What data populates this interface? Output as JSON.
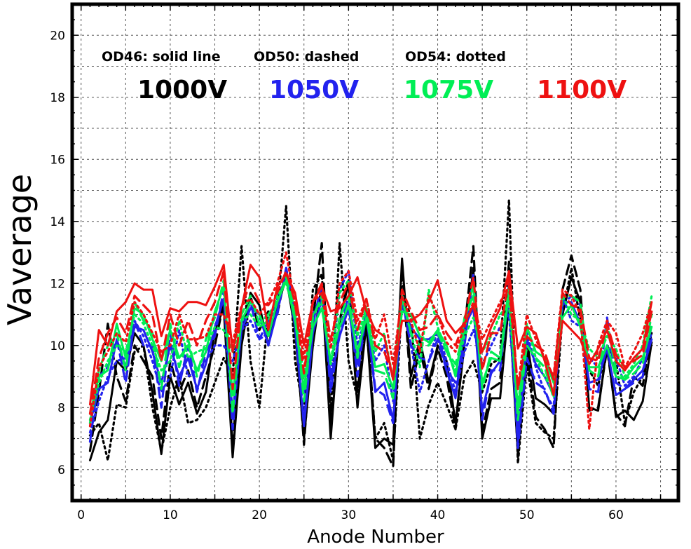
{
  "chart_data": {
    "type": "line",
    "xlabel": "Anode Number",
    "ylabel": "Vaverage",
    "xlim": [
      -1,
      67
    ],
    "ylim": [
      5,
      21
    ],
    "xticks": [
      0,
      10,
      20,
      30,
      40,
      50,
      60
    ],
    "yticks": [
      6,
      8,
      10,
      12,
      14,
      16,
      18,
      20
    ],
    "grid": true,
    "annotations": [
      {
        "text": "OD46: solid line"
      },
      {
        "text": "OD50: dashed"
      },
      {
        "text": "OD54: dotted"
      }
    ],
    "voltage_labels": [
      {
        "text": "1000V",
        "color": "#000000"
      },
      {
        "text": "1050V",
        "color": "#2222ee"
      },
      {
        "text": "1075V",
        "color": "#00ee55"
      },
      {
        "text": "1100V",
        "color": "#ee1111"
      }
    ],
    "x": [
      1,
      2,
      3,
      4,
      5,
      6,
      7,
      8,
      9,
      10,
      11,
      12,
      13,
      14,
      15,
      16,
      17,
      18,
      19,
      20,
      21,
      22,
      23,
      24,
      25,
      26,
      27,
      28,
      29,
      30,
      31,
      32,
      33,
      34,
      35,
      36,
      37,
      38,
      39,
      40,
      41,
      42,
      43,
      44,
      45,
      46,
      47,
      48,
      49,
      50,
      51,
      52,
      53,
      54,
      55,
      56,
      57,
      58,
      59,
      60,
      61,
      62,
      63,
      64
    ],
    "series": [
      {
        "voltage": "1000V",
        "style": "solid",
        "color": "#000000",
        "values": [
          6.3,
          7.2,
          7.6,
          9.5,
          9.2,
          10.4,
          10.0,
          8.5,
          6.5,
          9.0,
          8.1,
          8.8,
          7.8,
          8.5,
          10.5,
          11.2,
          6.4,
          10.0,
          11.7,
          11.3,
          10.0,
          11.2,
          12.2,
          10.5,
          7.0,
          10.0,
          12.0,
          7.0,
          10.8,
          12.0,
          8.0,
          10.7,
          6.7,
          7.0,
          6.8,
          12.8,
          9.0,
          10.2,
          8.8,
          10.0,
          9.5,
          7.5,
          10.0,
          12.5,
          7.0,
          8.3,
          8.3,
          11.4,
          6.5,
          10.2,
          8.3,
          8.1,
          7.8,
          11.0,
          12.2,
          11.4,
          8.0,
          7.9,
          10.0,
          7.7,
          7.9,
          7.6,
          8.2,
          10.1
        ]
      },
      {
        "voltage": "1000V",
        "style": "dashed",
        "color": "#000000",
        "values": [
          6.6,
          8.5,
          10.7,
          9.0,
          8.2,
          10.0,
          9.5,
          9.0,
          7.0,
          9.5,
          8.5,
          9.2,
          8.0,
          9.0,
          10.0,
          11.4,
          6.8,
          10.4,
          11.6,
          10.5,
          11.1,
          11.0,
          12.4,
          11.0,
          6.8,
          10.8,
          13.3,
          7.5,
          10.8,
          12.1,
          8.5,
          11.0,
          7.0,
          6.7,
          6.1,
          12.5,
          8.6,
          9.9,
          8.6,
          9.9,
          9.0,
          7.3,
          10.5,
          13.2,
          7.2,
          8.6,
          8.8,
          12.7,
          6.4,
          9.8,
          7.7,
          7.3,
          6.7,
          11.8,
          12.9,
          11.8,
          7.9,
          8.0,
          9.9,
          7.8,
          7.4,
          9.0,
          8.7,
          10.5
        ]
      },
      {
        "voltage": "1000V",
        "style": "dotted",
        "color": "#000000",
        "values": [
          7.1,
          7.5,
          6.3,
          8.1,
          8.0,
          9.8,
          10.0,
          8.0,
          6.6,
          8.0,
          9.0,
          7.5,
          7.6,
          8.0,
          8.8,
          9.6,
          9.0,
          13.2,
          9.5,
          8.0,
          11.0,
          11.0,
          14.5,
          9.5,
          7.8,
          11.8,
          12.3,
          7.8,
          13.3,
          9.5,
          8.3,
          11.0,
          7.0,
          7.5,
          6.3,
          11.5,
          11.0,
          7.0,
          8.1,
          8.8,
          8.1,
          7.3,
          9.0,
          9.5,
          8.5,
          9.4,
          9.6,
          14.7,
          6.2,
          9.4,
          7.5,
          7.2,
          7.0,
          11.0,
          12.5,
          10.8,
          9.2,
          8.7,
          10.0,
          9.5,
          7.5,
          8.5,
          9.0,
          10.4
        ]
      },
      {
        "voltage": "1050V",
        "style": "solid",
        "color": "#2222ee",
        "values": [
          7.5,
          8.6,
          8.8,
          10.2,
          9.3,
          10.6,
          10.5,
          9.8,
          8.8,
          10.0,
          9.0,
          9.6,
          8.6,
          9.4,
          10.6,
          11.5,
          7.8,
          10.5,
          11.2,
          11.0,
          10.0,
          11.1,
          12.4,
          10.6,
          7.4,
          10.4,
          11.5,
          8.9,
          10.3,
          11.2,
          9.4,
          11.0,
          8.5,
          8.8,
          7.6,
          11.3,
          10.6,
          10.2,
          10.2,
          10.4,
          9.2,
          8.3,
          10.6,
          11.2,
          7.9,
          9.1,
          9.5,
          11.5,
          6.9,
          10.2,
          9.4,
          9.0,
          8.4,
          11.4,
          11.4,
          10.7,
          8.8,
          8.9,
          9.9,
          8.4,
          8.6,
          8.9,
          9.2,
          10.2
        ]
      },
      {
        "voltage": "1050V",
        "style": "dashed",
        "color": "#2222ee",
        "values": [
          6.9,
          9.0,
          9.3,
          10.2,
          8.8,
          10.8,
          10.0,
          10.0,
          8.0,
          10.4,
          8.7,
          10.0,
          8.5,
          9.8,
          10.3,
          11.8,
          7.3,
          10.7,
          11.4,
          10.2,
          10.8,
          11.0,
          12.5,
          11.0,
          7.5,
          10.7,
          12.0,
          8.5,
          10.5,
          11.6,
          9.0,
          11.1,
          8.6,
          8.4,
          7.5,
          11.5,
          10.0,
          9.6,
          9.5,
          10.2,
          9.2,
          8.8,
          10.0,
          12.3,
          7.6,
          9.2,
          9.2,
          12.0,
          6.7,
          9.6,
          8.8,
          8.6,
          7.8,
          11.3,
          11.6,
          11.3,
          8.6,
          8.5,
          10.9,
          8.8,
          8.6,
          8.8,
          9.0,
          10.7
        ]
      },
      {
        "voltage": "1050V",
        "style": "dotted",
        "color": "#2222ee",
        "values": [
          7.2,
          8.2,
          9.0,
          9.5,
          9.6,
          10.8,
          10.3,
          9.5,
          8.5,
          9.0,
          10.5,
          9.0,
          9.2,
          9.5,
          10.0,
          10.0,
          9.5,
          10.5,
          10.8,
          10.2,
          10.4,
          11.5,
          12.2,
          11.0,
          8.5,
          11.0,
          11.5,
          9.0,
          11.8,
          12.4,
          10.0,
          11.0,
          9.5,
          10.0,
          8.2,
          11.6,
          10.0,
          8.5,
          9.5,
          10.5,
          9.5,
          8.5,
          9.8,
          10.5,
          9.4,
          10.0,
          10.6,
          11.0,
          7.3,
          10.4,
          9.3,
          8.5,
          8.0,
          11.6,
          10.8,
          10.6,
          9.6,
          9.3,
          10.0,
          9.6,
          8.7,
          9.0,
          9.6,
          10.4
        ]
      },
      {
        "voltage": "1075V",
        "style": "solid",
        "color": "#00ee55",
        "values": [
          7.8,
          9.0,
          9.2,
          10.7,
          9.6,
          11.2,
          11.0,
          10.2,
          9.5,
          10.5,
          9.6,
          10.0,
          9.2,
          9.8,
          11.1,
          11.9,
          8.4,
          10.8,
          11.4,
          11.0,
          10.3,
          11.4,
          12.1,
          10.8,
          8.6,
          10.6,
          11.2,
          9.5,
          10.6,
          11.3,
          9.8,
          10.9,
          9.3,
          9.4,
          8.6,
          11.1,
          11.0,
          10.3,
          10.1,
          10.5,
          10.0,
          9.0,
          10.9,
          11.6,
          8.8,
          9.6,
          9.5,
          11.7,
          7.9,
          10.6,
          9.8,
          9.6,
          8.8,
          10.9,
          11.3,
          10.6,
          9.3,
          9.3,
          10.0,
          9.0,
          8.9,
          9.3,
          9.6,
          10.6
        ]
      },
      {
        "voltage": "1075V",
        "style": "dashed",
        "color": "#00ee55",
        "values": [
          7.5,
          9.2,
          10.0,
          10.4,
          9.2,
          11.4,
          10.8,
          10.4,
          8.6,
          10.7,
          9.3,
          10.2,
          9.0,
          10.2,
          10.9,
          12.1,
          7.8,
          11.0,
          11.6,
          10.7,
          11.0,
          11.4,
          12.2,
          11.1,
          8.2,
          10.9,
          11.6,
          9.4,
          10.9,
          11.6,
          9.6,
          11.3,
          9.2,
          9.1,
          8.3,
          11.6,
          10.4,
          10.0,
          10.0,
          10.4,
          9.8,
          9.4,
          10.5,
          12.0,
          8.6,
          9.8,
          9.6,
          11.9,
          7.6,
          10.0,
          9.6,
          9.3,
          8.3,
          11.6,
          11.6,
          11.4,
          9.2,
          9.0,
          10.7,
          9.2,
          8.9,
          9.1,
          9.4,
          11.0
        ]
      },
      {
        "voltage": "1075V",
        "style": "dotted",
        "color": "#00ee55",
        "values": [
          7.6,
          8.8,
          9.5,
          10.0,
          9.8,
          11.0,
          10.7,
          10.0,
          9.2,
          9.5,
          10.8,
          9.6,
          9.8,
          9.9,
          10.6,
          10.5,
          9.8,
          10.8,
          11.0,
          10.6,
          10.8,
          11.6,
          12.0,
          11.0,
          9.0,
          11.0,
          11.4,
          9.4,
          11.7,
          12.1,
          10.3,
          11.2,
          9.8,
          10.4,
          8.9,
          11.5,
          10.4,
          9.3,
          11.8,
          10.6,
          9.8,
          9.2,
          10.3,
          10.9,
          9.8,
          10.3,
          11.0,
          11.3,
          8.0,
          10.7,
          9.6,
          9.0,
          8.5,
          11.6,
          11.0,
          10.8,
          9.9,
          9.6,
          10.3,
          9.9,
          9.0,
          9.4,
          10.0,
          11.6
        ]
      },
      {
        "voltage": "1100V",
        "style": "solid",
        "color": "#ee1111",
        "values": [
          8.1,
          10.5,
          10.0,
          11.1,
          11.4,
          12.0,
          11.8,
          11.8,
          10.3,
          11.2,
          11.1,
          11.4,
          11.4,
          11.3,
          11.9,
          12.6,
          9.8,
          11.2,
          12.6,
          12.2,
          10.5,
          11.9,
          12.3,
          11.7,
          10.0,
          11.4,
          11.9,
          11.1,
          11.2,
          11.6,
          12.2,
          11.1,
          10.5,
          10.3,
          8.9,
          10.8,
          10.8,
          11.0,
          11.4,
          12.1,
          10.8,
          10.4,
          10.7,
          11.3,
          9.8,
          10.6,
          11.2,
          12.4,
          9.9,
          10.6,
          10.4,
          9.5,
          8.4,
          10.8,
          10.5,
          10.2,
          9.4,
          9.9,
          10.5,
          9.5,
          9.2,
          9.6,
          9.9,
          11.4
        ]
      },
      {
        "voltage": "1100V",
        "style": "dashed",
        "color": "#ee1111",
        "values": [
          7.8,
          9.6,
          10.4,
          10.9,
          10.4,
          11.6,
          11.3,
          11.0,
          9.5,
          11.0,
          10.0,
          10.8,
          10.0,
          10.8,
          11.4,
          12.4,
          8.6,
          11.3,
          12.0,
          11.4,
          11.3,
          11.7,
          12.4,
          11.4,
          9.1,
          11.4,
          12.0,
          10.2,
          11.4,
          12.0,
          10.5,
          11.5,
          10.0,
          9.8,
          9.0,
          11.8,
          11.1,
          10.5,
          10.6,
          11.0,
          10.4,
          10.0,
          10.8,
          12.2,
          9.2,
          10.4,
          10.4,
          12.2,
          8.6,
          10.3,
          10.0,
          9.8,
          8.9,
          11.7,
          11.3,
          11.2,
          9.6,
          9.5,
          10.7,
          9.7,
          9.3,
          9.5,
          9.7,
          11.1
        ]
      },
      {
        "voltage": "1100V",
        "style": "dotted",
        "color": "#ee1111",
        "values": [
          7.4,
          9.3,
          9.8,
          10.4,
          10.1,
          11.4,
          11.0,
          10.4,
          9.8,
          10.0,
          11.0,
          10.2,
          10.2,
          10.3,
          11.0,
          11.0,
          10.1,
          11.3,
          11.5,
          11.0,
          11.4,
          12.0,
          13.0,
          11.3,
          9.6,
          11.4,
          11.7,
          9.9,
          12.0,
          12.4,
          10.8,
          11.5,
          10.2,
          11.0,
          9.4,
          11.6,
          10.8,
          9.8,
          11.6,
          11.0,
          10.1,
          9.8,
          10.6,
          11.4,
          10.2,
          10.8,
          11.4,
          11.9,
          8.6,
          11.0,
          10.2,
          9.6,
          9.0,
          11.8,
          11.6,
          11.0,
          7.3,
          10.0,
          10.8,
          10.4,
          9.3,
          9.8,
          10.4,
          11.4
        ]
      }
    ]
  }
}
